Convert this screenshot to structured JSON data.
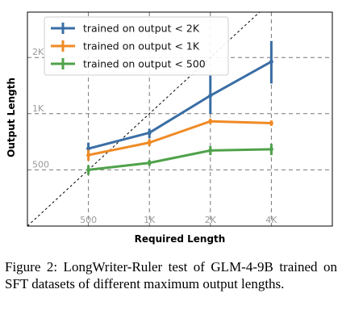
{
  "chart_data": {
    "type": "line",
    "xlabel": "Required Length",
    "ylabel": "Output Length",
    "x": [
      500,
      1000,
      2000,
      4000
    ],
    "x_tick_labels": [
      "500",
      "1K",
      "2K",
      "4K"
    ],
    "y_tick_values": [
      500,
      1000,
      2000
    ],
    "y_tick_labels": [
      "500",
      "1K",
      "2K"
    ],
    "xlim": [
      250,
      8000
    ],
    "ylim": [
      250,
      3500
    ],
    "scale": "log",
    "grid": true,
    "reference_line": "y = x",
    "legend_position": "top-left",
    "series": [
      {
        "name": "trained on output < 2K",
        "color": "#3a6ea5",
        "values": [
          650,
          790,
          1250,
          1900
        ],
        "error_low": [
          590,
          740,
          1000,
          1450
        ],
        "error_high": [
          700,
          830,
          1600,
          2450
        ]
      },
      {
        "name": "trained on output < 1K",
        "color": "#f08a24",
        "values": [
          600,
          700,
          910,
          890
        ],
        "error_low": [
          560,
          670,
          880,
          860
        ],
        "error_high": [
          640,
          730,
          940,
          920
        ]
      },
      {
        "name": "trained on output < 500",
        "color": "#4fa24a",
        "values": [
          500,
          545,
          635,
          645
        ],
        "error_low": [
          470,
          525,
          600,
          600
        ],
        "error_high": [
          530,
          565,
          670,
          690
        ]
      }
    ]
  },
  "caption": "Figure 2: LongWriter-Ruler test of GLM-4-9B trained on SFT datasets of different maximum output lengths."
}
